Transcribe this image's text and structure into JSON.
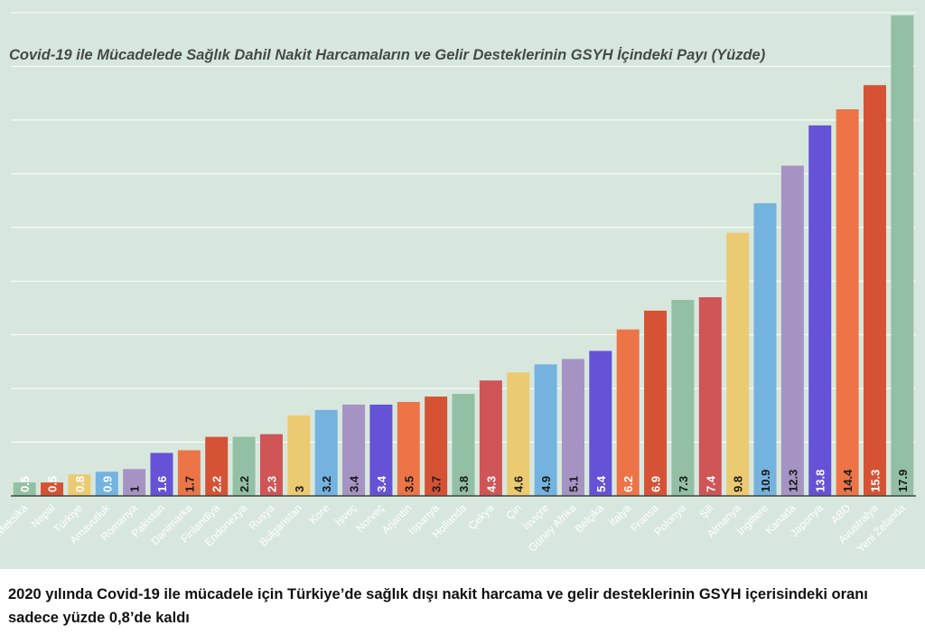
{
  "chart_data": {
    "type": "bar",
    "title": "Covid-19 ile Mücadelede Sağlık Dahil Nakit Harcamaların ve Gelir Desteklerinin GSYH İçindeki Payı (Yüzde)",
    "categories": [
      "Meksika",
      "Nepal",
      "Türkiye",
      "Arnavutluk",
      "Romanya",
      "Pakistan",
      "Danimarka",
      "Finlandiya",
      "Endonezya",
      "Rusya",
      "Bulgaristan",
      "Kore",
      "İsveç",
      "Norveç",
      "Arjantin",
      "İspanya",
      "Hollanda",
      "Çekya",
      "Çin",
      "İsviçre",
      "Güney Afrika",
      "Belçika",
      "İtalya",
      "Fransa",
      "Polonya",
      "Şili",
      "Almanya",
      "İngiltere",
      "Kanada",
      "Japonya",
      "ABD",
      "Avustralya",
      "Yeni Zelanda"
    ],
    "values": [
      0.5,
      0.5,
      0.8,
      0.9,
      1,
      1.6,
      1.7,
      2.2,
      2.2,
      2.3,
      3,
      3.2,
      3.4,
      3.4,
      3.5,
      3.7,
      3.8,
      4.3,
      4.6,
      4.9,
      5.1,
      5.4,
      6.2,
      6.9,
      7.3,
      7.4,
      9.8,
      10.9,
      12.3,
      13.8,
      14.4,
      15.3,
      17.9
    ],
    "value_labels": [
      "0.5",
      "0.5",
      "0.8",
      "0.9",
      "1",
      "1.6",
      "1.7",
      "2.2",
      "2.2",
      "2.3",
      "3",
      "3.2",
      "3.4",
      "3.4",
      "3.5",
      "3.7",
      "3.8",
      "4.3",
      "4.6",
      "4.9",
      "5.1",
      "5.4",
      "6.2",
      "6.9",
      "7.3",
      "7.4",
      "9.8",
      "10.9",
      "12.3",
      "13.8",
      "14.4",
      "15.3",
      "17.9"
    ],
    "colors": [
      "#93c0a4",
      "#d55235",
      "#ecca72",
      "#74b2e0",
      "#a593c4",
      "#6552d6",
      "#ed7447",
      "#d55235",
      "#93c0a4",
      "#cf5556",
      "#ecca72",
      "#74b2e0",
      "#a593c4",
      "#6552d6",
      "#ed7447",
      "#d55235",
      "#93c0a4",
      "#cf5556",
      "#ecca72",
      "#74b2e0",
      "#a593c4",
      "#6552d6",
      "#ed7447",
      "#d55235",
      "#93c0a4",
      "#cf5556",
      "#ecca72",
      "#74b2e0",
      "#a593c4",
      "#6552d6",
      "#ed7447",
      "#d55235",
      "#93c0a4"
    ],
    "label_colors": [
      "#ffffff",
      "#ffffff",
      "#ffffff",
      "#ffffff",
      "#1a1a1a",
      "#ffffff",
      "#1a1a1a",
      "#ffffff",
      "#1a1a1a",
      "#ffffff",
      "#1a1a1a",
      "#1a1a1a",
      "#1a1a1a",
      "#ffffff",
      "#1a1a1a",
      "#1a1a1a",
      "#1a1a1a",
      "#ffffff",
      "#1a1a1a",
      "#1a1a1a",
      "#1a1a1a",
      "#ffffff",
      "#ffffff",
      "#ffffff",
      "#1a1a1a",
      "#ffffff",
      "#1a1a1a",
      "#1a1a1a",
      "#1a1a1a",
      "#ffffff",
      "#1a1a1a",
      "#ffffff",
      "#1a1a1a"
    ],
    "ylim": [
      0,
      18
    ],
    "gridline_step": 2,
    "grid": true,
    "xlabel": "",
    "ylabel": ""
  },
  "caption": "2020 yılında Covid-19 ile mücadele için Türkiye’de sağlık dışı nakit harcama ve gelir desteklerinin GSYH içerisindeki oranı sadece yüzde 0,8’de kaldı"
}
